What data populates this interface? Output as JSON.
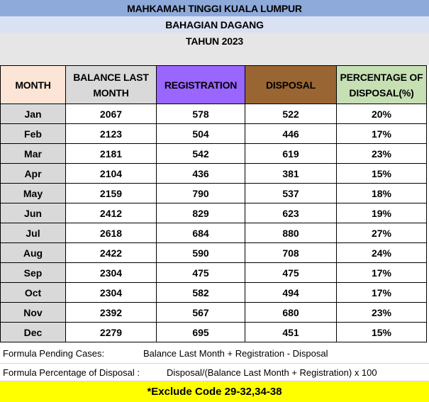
{
  "header": {
    "title": "MAHKAMAH TINGGI KUALA LUMPUR",
    "division": "BAHAGIAN DAGANG",
    "year": "TAHUN 2023"
  },
  "table": {
    "columns": [
      {
        "label_line1": "MONTH",
        "label_line2": "",
        "color": "#fce4d6"
      },
      {
        "label_line1": "BALANCE LAST",
        "label_line2": "MONTH",
        "color": "#d9d9d9"
      },
      {
        "label_line1": "REGISTRATION",
        "label_line2": "",
        "color": "#9966ff"
      },
      {
        "label_line1": "DISPOSAL",
        "label_line2": "",
        "color": "#996633"
      },
      {
        "label_line1": "PERCENTAGE OF",
        "label_line2": "DISPOSAL(%)",
        "color": "#c6e0b4"
      }
    ],
    "rows": [
      {
        "month": "Jan",
        "balance": "2067",
        "registration": "578",
        "disposal": "522",
        "percentage": "20%"
      },
      {
        "month": "Feb",
        "balance": "2123",
        "registration": "504",
        "disposal": "446",
        "percentage": "17%"
      },
      {
        "month": "Mar",
        "balance": "2181",
        "registration": "542",
        "disposal": "619",
        "percentage": "23%"
      },
      {
        "month": "Apr",
        "balance": "2104",
        "registration": "436",
        "disposal": "381",
        "percentage": "15%"
      },
      {
        "month": "May",
        "balance": "2159",
        "registration": "790",
        "disposal": "537",
        "percentage": "18%"
      },
      {
        "month": "Jun",
        "balance": "2412",
        "registration": "829",
        "disposal": "623",
        "percentage": "19%"
      },
      {
        "month": "Jul",
        "balance": "2618",
        "registration": "684",
        "disposal": "880",
        "percentage": "27%"
      },
      {
        "month": "Aug",
        "balance": "2422",
        "registration": "590",
        "disposal": "708",
        "percentage": "24%"
      },
      {
        "month": "Sep",
        "balance": "2304",
        "registration": "475",
        "disposal": "475",
        "percentage": "17%"
      },
      {
        "month": "Oct",
        "balance": "2304",
        "registration": "582",
        "disposal": "494",
        "percentage": "17%"
      },
      {
        "month": "Nov",
        "balance": "2392",
        "registration": "567",
        "disposal": "680",
        "percentage": "23%"
      },
      {
        "month": "Dec",
        "balance": "2279",
        "registration": "695",
        "disposal": "451",
        "percentage": "15%"
      }
    ]
  },
  "formulas": {
    "pending_label": "Formula Pending Cases:",
    "pending_value": "Balance Last Month + Registration - Disposal",
    "percentage_label": "Formula Percentage of Disposal :",
    "percentage_value": "Disposal/(Balance Last Month + Registration) x 100"
  },
  "note": "*Exclude Code 29-32,34-38",
  "colors": {
    "title_band": "#8eaadb",
    "division_band": "#d9e1f2",
    "year_band": "#e7e6e6",
    "note_band": "#ffff00"
  }
}
